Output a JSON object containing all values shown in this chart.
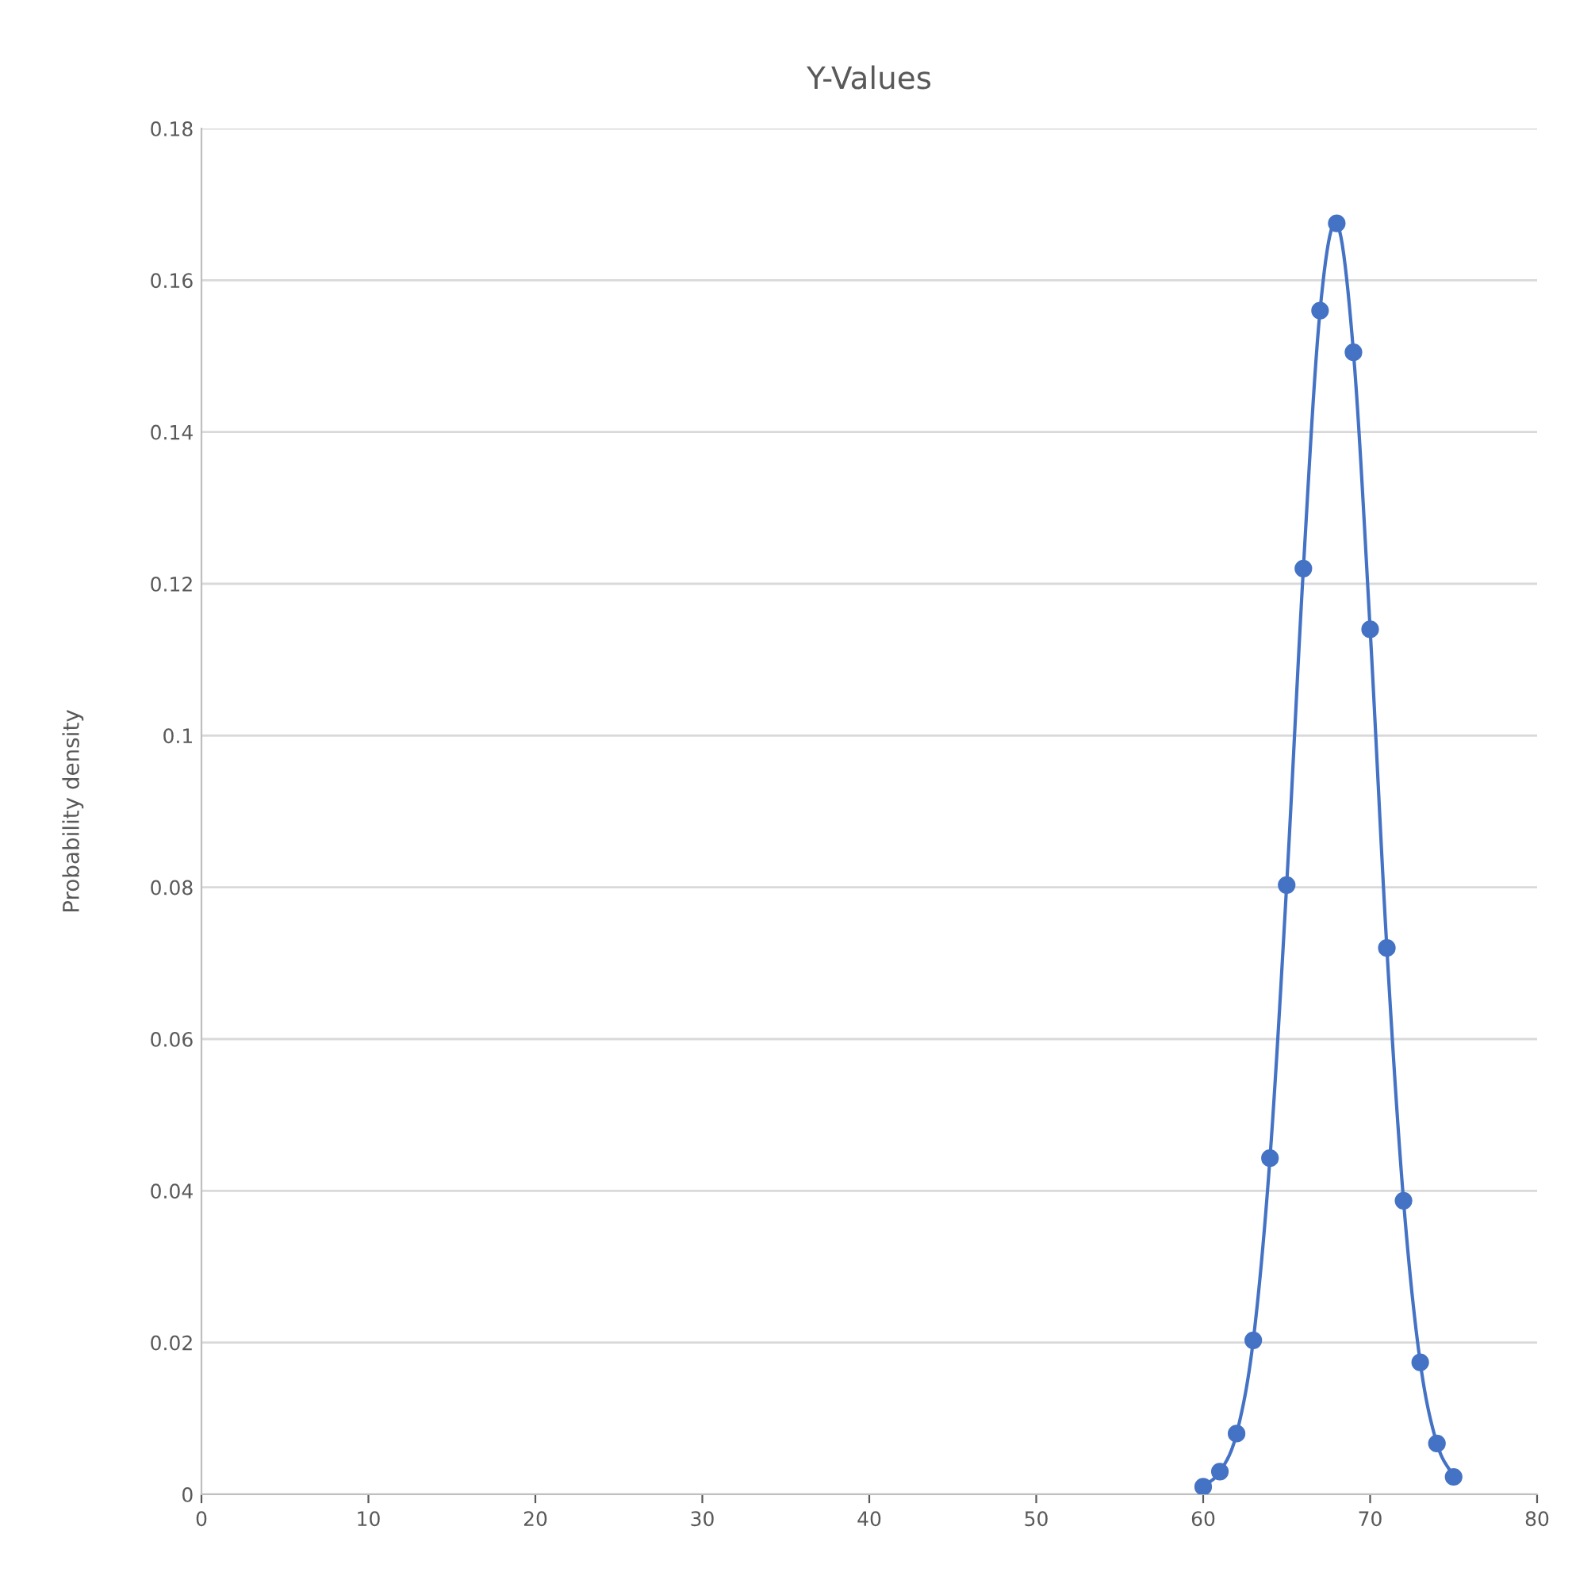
{
  "chart_data": {
    "type": "line",
    "title": "Y-Values",
    "ylabel": "Probability density",
    "x": [
      60,
      61,
      62,
      63,
      64,
      65,
      66,
      67,
      68,
      69,
      70,
      71,
      72,
      73,
      74,
      75
    ],
    "series": [
      {
        "color": "#4472c4",
        "values": [
          0.001,
          0.003,
          0.008,
          0.0203,
          0.0443,
          0.0803,
          0.122,
          0.156,
          0.1675,
          0.1505,
          0.114,
          0.072,
          0.0387,
          0.0174,
          0.0067,
          0.0023
        ]
      }
    ],
    "xlim": [
      0,
      80
    ],
    "xticks": [
      0,
      10,
      20,
      30,
      40,
      50,
      60,
      70,
      80
    ],
    "ylim": [
      0,
      0.18
    ],
    "yticks": [
      0,
      0.02,
      0.04,
      0.06,
      0.08,
      0.1,
      0.12,
      0.14,
      0.16,
      0.18
    ],
    "grid": "y",
    "marker": "circle",
    "line_style": "solid"
  }
}
